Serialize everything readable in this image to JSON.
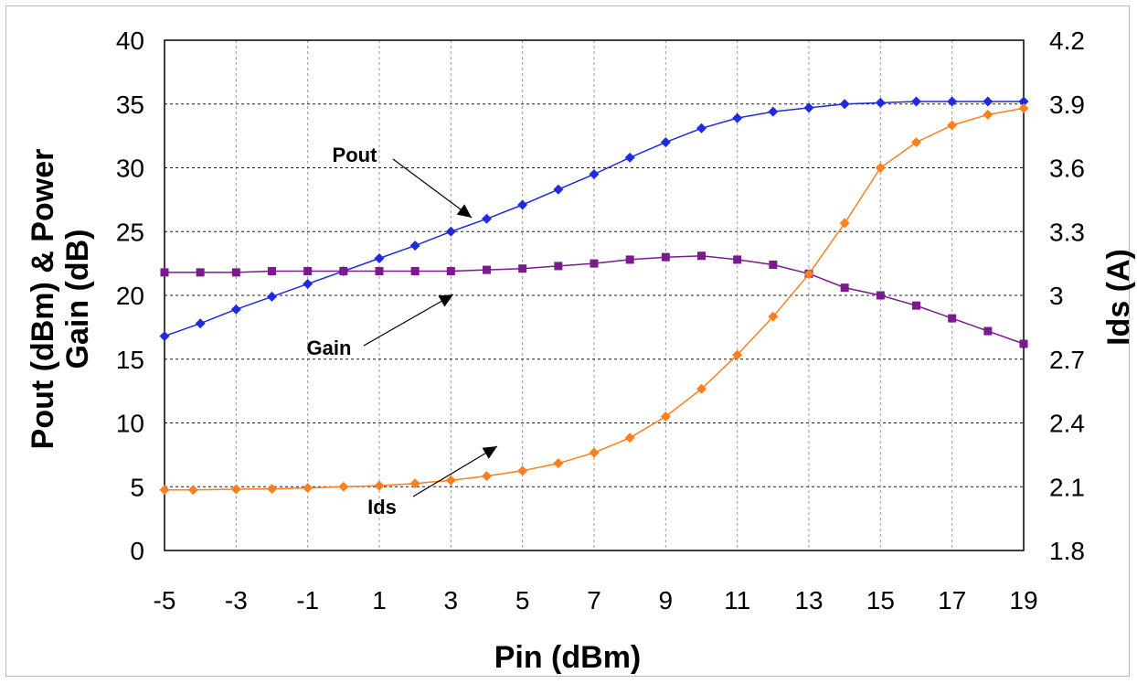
{
  "chart_data": {
    "type": "line",
    "xlabel": "Pin (dBm)",
    "ylabel_left": [
      "Pout (dBm) & Power",
      "Gain (dB)"
    ],
    "ylabel_right": "Ids (A)",
    "xlim": [
      -5,
      19
    ],
    "ylim_left": [
      0,
      40
    ],
    "ylim_right": [
      1.8,
      4.2
    ],
    "x_ticks": [
      "-5",
      "-3",
      "-1",
      "1",
      "3",
      "5",
      "7",
      "9",
      "11",
      "13",
      "15",
      "17",
      "19"
    ],
    "y_ticks_left": [
      "0",
      "5",
      "10",
      "15",
      "20",
      "25",
      "30",
      "35",
      "40"
    ],
    "y_ticks_right": [
      "1.8",
      "2.1",
      "2.4",
      "2.7",
      "3",
      "3.3",
      "3.6",
      "3.9",
      "4.2"
    ],
    "grid": true,
    "series": [
      {
        "name": "Pout",
        "axis": "left",
        "color": "#1f2bdc",
        "marker": "diamond",
        "points": [
          [
            -5,
            16.8
          ],
          [
            -4,
            17.8
          ],
          [
            -3,
            18.9
          ],
          [
            -2,
            19.9
          ],
          [
            -1,
            20.9
          ],
          [
            0,
            21.9
          ],
          [
            1,
            22.9
          ],
          [
            2,
            23.9
          ],
          [
            3,
            25.0
          ],
          [
            4,
            26.0
          ],
          [
            5,
            27.1
          ],
          [
            6,
            28.3
          ],
          [
            7,
            29.5
          ],
          [
            8,
            30.8
          ],
          [
            9,
            32.0
          ],
          [
            10,
            33.1
          ],
          [
            11,
            33.9
          ],
          [
            12,
            34.4
          ],
          [
            13,
            34.7
          ],
          [
            14,
            35.0
          ],
          [
            15,
            35.1
          ],
          [
            16,
            35.2
          ],
          [
            17,
            35.2
          ],
          [
            18,
            35.2
          ],
          [
            19,
            35.2
          ]
        ]
      },
      {
        "name": "Gain",
        "axis": "left",
        "color": "#7a1a8c",
        "marker": "square",
        "points": [
          [
            -5,
            21.8
          ],
          [
            -4,
            21.8
          ],
          [
            -3,
            21.8
          ],
          [
            -2,
            21.9
          ],
          [
            -1,
            21.9
          ],
          [
            0,
            21.9
          ],
          [
            1,
            21.9
          ],
          [
            2,
            21.9
          ],
          [
            3,
            21.9
          ],
          [
            4,
            22.0
          ],
          [
            5,
            22.1
          ],
          [
            6,
            22.3
          ],
          [
            7,
            22.5
          ],
          [
            8,
            22.8
          ],
          [
            9,
            23.0
          ],
          [
            10,
            23.1
          ],
          [
            11,
            22.8
          ],
          [
            12,
            22.4
          ],
          [
            13,
            21.7
          ],
          [
            14,
            20.6
          ],
          [
            15,
            20.0
          ],
          [
            16,
            19.2
          ],
          [
            17,
            18.2
          ],
          [
            18,
            17.2
          ],
          [
            19,
            16.2
          ]
        ]
      },
      {
        "name": "Ids",
        "axis": "right",
        "color": "#ff7f1e",
        "marker": "diamond",
        "points": [
          [
            -5,
            2.085
          ],
          [
            -4.2,
            2.085
          ],
          [
            -3,
            2.088
          ],
          [
            -2,
            2.09
          ],
          [
            -1,
            2.094
          ],
          [
            0,
            2.1
          ],
          [
            1,
            2.105
          ],
          [
            2,
            2.115
          ],
          [
            3,
            2.13
          ],
          [
            4,
            2.15
          ],
          [
            5,
            2.175
          ],
          [
            6,
            2.21
          ],
          [
            7,
            2.26
          ],
          [
            8,
            2.33
          ],
          [
            9,
            2.43
          ],
          [
            10,
            2.56
          ],
          [
            11,
            2.72
          ],
          [
            12,
            2.9
          ],
          [
            13,
            3.1
          ],
          [
            14,
            3.34
          ],
          [
            15,
            3.6
          ],
          [
            16,
            3.72
          ],
          [
            17,
            3.8
          ],
          [
            18,
            3.85
          ],
          [
            19,
            3.88
          ]
        ]
      }
    ],
    "annotations": [
      {
        "text": "Pout",
        "target": "Pout"
      },
      {
        "text": "Gain",
        "target": "Gain"
      },
      {
        "text": "Ids",
        "target": "Ids"
      }
    ]
  }
}
